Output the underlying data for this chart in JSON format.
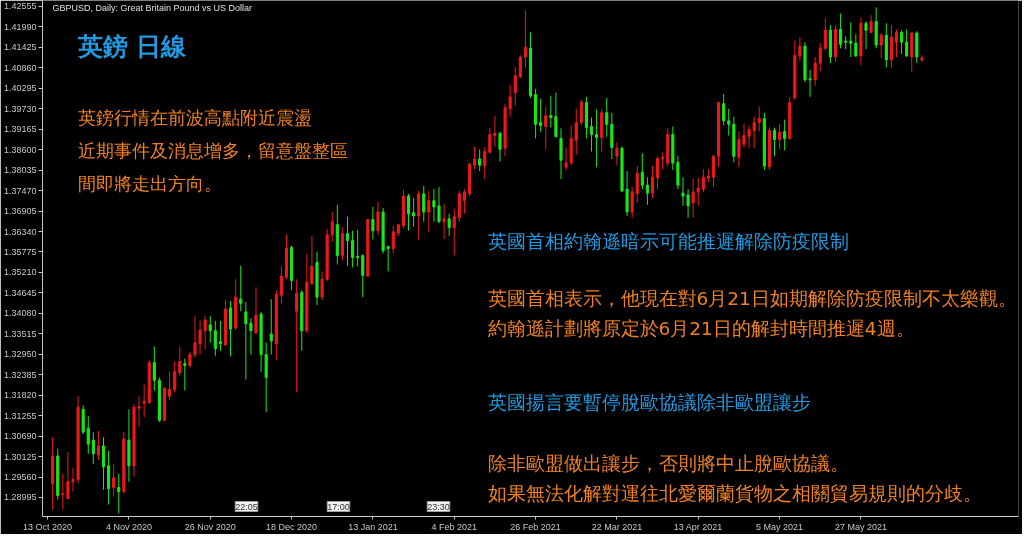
{
  "chart_data": {
    "type": "candlestick",
    "title": "英鎊 日線",
    "subtitle": "GBPUSD, Daily: Great Britain Pound vs US Dollar",
    "annotations": [
      "英鎊行情在前波高點附近震盪",
      "近期事件及消息增多，留意盤整區",
      "間即將走出方向。",
      "英國首相約翰遜暗示可能推遲解除防疫限制",
      "英國首相表示，他現在對6月21日如期解除防疫限制不太樂觀。",
      "約翰遜計劃將原定於6月21日的解封時間推遲4週。",
      "英國揚言要暫停脫歐協議除非歐盟讓步",
      "除非歐盟做出讓步，否則將中止脫歐協議。",
      "如果無法化解對運往北愛爾蘭貨物之相關貿易規則的分歧。",
      "22:05",
      "17:00",
      "23:30"
    ],
    "categories": [
      "13 Oct 2020",
      null,
      null,
      null,
      null,
      null,
      null,
      null,
      null,
      null,
      null,
      null,
      null,
      null,
      null,
      null,
      "4 Nov 2020",
      null,
      null,
      null,
      null,
      null,
      null,
      null,
      null,
      null,
      null,
      null,
      null,
      null,
      null,
      null,
      "26 Nov 2020",
      null,
      null,
      null,
      null,
      null,
      null,
      null,
      null,
      null,
      null,
      null,
      null,
      null,
      null,
      null,
      "18 Dec 2020",
      null,
      null,
      null,
      null,
      null,
      null,
      null,
      null,
      null,
      null,
      null,
      null,
      null,
      null,
      null,
      "13 Jan 2021",
      null,
      null,
      null,
      null,
      null,
      null,
      null,
      null,
      null,
      null,
      null,
      null,
      null,
      null,
      null,
      "4 Feb 2021",
      null,
      null,
      null,
      null,
      null,
      null,
      null,
      null,
      null,
      null,
      null,
      null,
      null,
      null,
      null,
      "26 Feb 2021",
      null,
      null,
      null,
      null,
      null,
      null,
      null,
      null,
      null,
      null,
      null,
      null,
      null,
      null,
      null,
      "22 Mar 2021",
      null,
      null,
      null,
      null,
      null,
      null,
      null,
      null,
      null,
      null,
      null,
      null,
      null,
      null,
      null,
      "13 Apr 2021",
      null,
      null,
      null,
      null,
      null,
      null,
      null,
      null,
      null,
      null,
      null,
      null,
      null,
      null,
      null,
      "5 May 2021",
      null,
      null,
      null,
      null,
      null,
      null,
      null,
      null,
      null,
      null,
      null,
      null,
      null,
      null,
      null,
      "27 May 2021",
      null,
      null,
      null,
      null,
      null,
      null,
      null,
      null,
      null,
      null,
      null,
      null
    ],
    "ohlc": [
      null,
      [
        1.2938,
        1.3066,
        1.2866,
        1.3014
      ],
      [
        1.3014,
        1.3034,
        1.2894,
        1.2905
      ],
      [
        1.2907,
        1.2965,
        1.2866,
        1.291
      ],
      [
        1.2897,
        1.3025,
        1.2894,
        1.2943
      ],
      [
        1.2943,
        1.2982,
        1.2916,
        1.2949
      ],
      [
        1.2949,
        1.3179,
        1.2938,
        1.3149
      ],
      [
        1.3143,
        1.3154,
        1.3075,
        1.308
      ],
      [
        1.3091,
        1.3124,
        1.302,
        1.3047
      ],
      [
        1.3058,
        1.308,
        1.2992,
        1.302
      ],
      [
        1.3017,
        1.3083,
        1.3003,
        1.3042
      ],
      [
        1.3042,
        1.3066,
        1.2921,
        1.2984
      ],
      [
        1.2987,
        1.3028,
        1.288,
        1.2924
      ],
      [
        1.2927,
        1.2992,
        1.2902,
        1.2954
      ],
      [
        1.2927,
        1.2965,
        1.2855,
        1.2916
      ],
      [
        1.2916,
        1.308,
        1.291,
        1.3061
      ],
      [
        1.3058,
        1.3143,
        1.2943,
        1.2987
      ],
      [
        1.2987,
        1.3157,
        1.2957,
        1.3149
      ],
      [
        1.3146,
        1.3179,
        1.3094,
        1.3151
      ],
      [
        1.316,
        1.3212,
        1.3121,
        1.3165
      ],
      [
        1.3162,
        1.328,
        1.3157,
        1.3272
      ],
      [
        1.3272,
        1.3316,
        1.3195,
        1.3223
      ],
      [
        1.3223,
        1.3231,
        1.3108,
        1.3113
      ],
      [
        1.3113,
        1.3204,
        1.311,
        1.3201
      ],
      [
        1.3179,
        1.3247,
        1.3168,
        1.3198
      ],
      [
        1.3198,
        1.3275,
        1.319,
        1.3247
      ],
      [
        1.3245,
        1.3316,
        1.3236,
        1.3275
      ],
      [
        1.3269,
        1.3283,
        1.3195,
        1.3264
      ],
      [
        1.3264,
        1.3302,
        1.3258,
        1.3294
      ],
      [
        1.3294,
        1.3401,
        1.3286,
        1.3327
      ],
      [
        1.3324,
        1.3387,
        1.3294,
        1.3362
      ],
      [
        1.336,
        1.3401,
        1.3308,
        1.339
      ],
      [
        1.3376,
        1.3401,
        1.3327,
        1.336
      ],
      [
        1.336,
        1.3387,
        1.3291,
        1.331
      ],
      [
        1.333,
        1.3387,
        1.3305,
        1.3324
      ],
      [
        1.3321,
        1.3445,
        1.3319,
        1.342
      ],
      [
        1.3423,
        1.3442,
        1.3289,
        1.3365
      ],
      [
        1.3368,
        1.3502,
        1.3362,
        1.3453
      ],
      [
        1.3447,
        1.354,
        1.3414,
        1.3436
      ],
      [
        1.3412,
        1.3439,
        1.3225,
        1.3379
      ],
      [
        1.3381,
        1.3395,
        1.3294,
        1.336
      ],
      [
        1.3354,
        1.348,
        1.3351,
        1.3403
      ],
      [
        1.3406,
        1.3412,
        1.3247,
        1.3294
      ],
      [
        1.3294,
        1.3327,
        1.3135,
        1.3231
      ],
      [
        1.3351,
        1.3447,
        1.3294,
        1.3332
      ],
      [
        1.3324,
        1.3472,
        1.328,
        1.3461
      ],
      [
        1.3458,
        1.3538,
        1.3436,
        1.3511
      ],
      [
        1.3508,
        1.3625,
        1.3502,
        1.3587
      ],
      [
        1.359,
        1.3595,
        1.3472,
        1.3499
      ],
      [
        1.3414,
        1.3502,
        1.319,
        1.3464
      ],
      [
        1.3466,
        1.3472,
        1.3305,
        1.336
      ],
      [
        1.336,
        1.3573,
        1.3354,
        1.3494
      ],
      [
        1.3491,
        1.3622,
        1.3486,
        1.3538
      ],
      [
        1.3549,
        1.3579,
        1.3431,
        1.3453
      ],
      [
        1.3453,
        1.3524,
        1.3445,
        1.3502
      ],
      [
        1.3502,
        1.3642,
        1.3497,
        1.3625
      ],
      [
        1.3625,
        1.3688,
        1.3606,
        1.3661
      ],
      [
        1.3653,
        1.3708,
        1.3543,
        1.3568
      ],
      [
        1.3568,
        1.3645,
        1.3554,
        1.3628
      ],
      [
        1.3628,
        1.3675,
        1.354,
        1.3609
      ],
      [
        1.3609,
        1.3636,
        1.3535,
        1.3562
      ],
      [
        1.3565,
        1.3639,
        1.3538,
        1.3562
      ],
      [
        1.3568,
        1.3571,
        1.3453,
        1.3513
      ],
      [
        1.3511,
        1.3669,
        1.3508,
        1.3667
      ],
      [
        1.3667,
        1.3702,
        1.3612,
        1.3636
      ],
      [
        1.3636,
        1.3716,
        1.3625,
        1.3688
      ],
      [
        1.3688,
        1.3699,
        1.3573,
        1.3581
      ],
      [
        1.3592,
        1.3595,
        1.3524,
        1.3587
      ],
      [
        1.3587,
        1.365,
        1.3573,
        1.3633
      ],
      [
        1.363,
        1.3655,
        1.3622,
        1.3653
      ],
      [
        1.365,
        1.3749,
        1.3642,
        1.3732
      ],
      [
        1.3732,
        1.3738,
        1.3636,
        1.3683
      ],
      [
        1.3686,
        1.3727,
        1.3647,
        1.3677
      ],
      [
        1.3677,
        1.3746,
        1.3612,
        1.3738
      ],
      [
        1.3738,
        1.376,
        1.3661,
        1.3688
      ],
      [
        1.3688,
        1.3746,
        1.3633,
        1.3719
      ],
      [
        1.3719,
        1.3751,
        1.3661,
        1.3702
      ],
      [
        1.3705,
        1.3757,
        1.3658,
        1.3661
      ],
      [
        1.3661,
        1.371,
        1.3614,
        1.3669
      ],
      [
        1.3669,
        1.3683,
        1.3622,
        1.3645
      ],
      [
        1.3645,
        1.3697,
        1.3568,
        1.3675
      ],
      [
        1.3672,
        1.3746,
        1.3661,
        1.3738
      ],
      [
        1.3719,
        1.3751,
        1.3683,
        1.3743
      ],
      [
        1.3738,
        1.3823,
        1.3732,
        1.382
      ],
      [
        1.3817,
        1.3869,
        1.3806,
        1.3834
      ],
      [
        1.3834,
        1.3861,
        1.3801,
        1.3817
      ],
      [
        1.3815,
        1.3866,
        1.3779,
        1.3855
      ],
      [
        1.3853,
        1.3921,
        1.385,
        1.3902
      ],
      [
        1.3899,
        1.3954,
        1.3869,
        1.3905
      ],
      [
        1.3905,
        1.391,
        1.3828,
        1.3861
      ],
      [
        1.3864,
        1.3987,
        1.3842,
        1.3976
      ],
      [
        1.3973,
        1.4039,
        1.3951,
        1.4006
      ],
      [
        1.4017,
        1.4088,
        1.3982,
        1.4064
      ],
      [
        1.4061,
        1.4121,
        1.4058,
        1.4116
      ],
      [
        1.4116,
        1.4245,
        1.4086,
        1.4143
      ],
      [
        1.414,
        1.4184,
        1.4003,
        1.4009
      ],
      [
        1.4012,
        1.4028,
        1.3891,
        1.393
      ],
      [
        1.3935,
        1.4001,
        1.391,
        1.3927
      ],
      [
        1.3924,
        1.3979,
        1.3861,
        1.3954
      ],
      [
        1.3954,
        1.4009,
        1.3921,
        1.3949
      ],
      [
        1.3951,
        1.4017,
        1.3894,
        1.3896
      ],
      [
        1.3891,
        1.3919,
        1.3779,
        1.3831
      ],
      [
        1.3812,
        1.3866,
        1.3804,
        1.3823
      ],
      [
        1.3823,
        1.3927,
        1.3817,
        1.3891
      ],
      [
        1.3886,
        1.3973,
        1.3847,
        1.3935
      ],
      [
        1.3935,
        1.3998,
        1.3927,
        1.3992
      ],
      [
        1.399,
        1.4006,
        1.3891,
        1.3921
      ],
      [
        1.3924,
        1.3949,
        1.3855,
        1.3902
      ],
      [
        1.3902,
        1.3971,
        1.3812,
        1.3894
      ],
      [
        1.3894,
        1.3973,
        1.3853,
        1.3962
      ],
      [
        1.3962,
        1.4003,
        1.3896,
        1.393
      ],
      [
        1.393,
        1.3962,
        1.3834,
        1.3866
      ],
      [
        1.3842,
        1.388,
        1.3817,
        1.3864
      ],
      [
        1.3864,
        1.3869,
        1.3743,
        1.3746
      ],
      [
        1.3751,
        1.3801,
        1.3677,
        1.3688
      ],
      [
        1.3688,
        1.3757,
        1.3672,
        1.3743
      ],
      [
        1.3738,
        1.3815,
        1.3713,
        1.3795
      ],
      [
        1.3798,
        1.385,
        1.3751,
        1.3762
      ],
      [
        1.3762,
        1.3784,
        1.3708,
        1.374
      ],
      [
        1.374,
        1.3815,
        1.3727,
        1.3784
      ],
      [
        1.3782,
        1.3842,
        1.3751,
        1.3836
      ],
      [
        1.3834,
        1.3853,
        1.3806,
        1.3839
      ],
      [
        1.3823,
        1.3919,
        1.3815,
        1.3902
      ],
      [
        1.3902,
        1.3924,
        1.3804,
        1.3823
      ],
      [
        1.3825,
        1.3842,
        1.3751,
        1.3762
      ],
      [
        1.374,
        1.3784,
        1.3705,
        1.3732
      ],
      [
        1.3735,
        1.3751,
        1.3672,
        1.3705
      ],
      [
        1.3713,
        1.3779,
        1.3672,
        1.3743
      ],
      [
        1.3743,
        1.3782,
        1.3705,
        1.3754
      ],
      [
        1.3751,
        1.3806,
        1.3743,
        1.3784
      ],
      [
        1.3782,
        1.3806,
        1.3771,
        1.3787
      ],
      [
        1.3784,
        1.3845,
        1.3757,
        1.3842
      ],
      [
        1.3842,
        1.3992,
        1.3812,
        1.399
      ],
      [
        1.3987,
        1.4014,
        1.3927,
        1.394
      ],
      [
        1.394,
        1.3973,
        1.3899,
        1.393
      ],
      [
        1.393,
        1.3951,
        1.3825,
        1.3842
      ],
      [
        1.3839,
        1.391,
        1.3812,
        1.3888
      ],
      [
        1.3875,
        1.3932,
        1.3866,
        1.3899
      ],
      [
        1.3897,
        1.3927,
        1.3864,
        1.3916
      ],
      [
        1.3913,
        1.3951,
        1.3864,
        1.3935
      ],
      [
        1.3935,
        1.3979,
        1.391,
        1.3946
      ],
      [
        1.3946,
        1.3962,
        1.3804,
        1.3815
      ],
      [
        1.3812,
        1.3921,
        1.3804,
        1.3913
      ],
      [
        1.3913,
        1.3921,
        1.3842,
        1.3888
      ],
      [
        1.3888,
        1.3932,
        1.3861,
        1.3908
      ],
      [
        1.391,
        1.3943,
        1.3858,
        1.3891
      ],
      [
        1.3891,
        1.4006,
        1.3888,
        1.399
      ],
      [
        1.4003,
        1.4162,
        1.3998,
        1.4121
      ],
      [
        1.4119,
        1.4171,
        1.4105,
        1.4146
      ],
      [
        1.4146,
        1.4157,
        1.4047,
        1.4053
      ],
      [
        1.4056,
        1.408,
        1.4006,
        1.4053
      ],
      [
        1.4053,
        1.4116,
        1.4036,
        1.4099
      ],
      [
        1.4099,
        1.4154,
        1.4077,
        1.414
      ],
      [
        1.414,
        1.4223,
        1.4135,
        1.419
      ],
      [
        1.419,
        1.4204,
        1.4099,
        1.4116
      ],
      [
        1.4116,
        1.4204,
        1.4102,
        1.4192
      ],
      [
        1.4192,
        1.4236,
        1.414,
        1.4151
      ],
      [
        1.416,
        1.4173,
        1.4138,
        1.4157
      ],
      [
        1.416,
        1.4212,
        1.4116,
        1.4154
      ],
      [
        1.4154,
        1.4179,
        1.4116,
        1.4119
      ],
      [
        1.4119,
        1.4225,
        1.4094,
        1.4209
      ],
      [
        1.4209,
        1.4214,
        1.4138,
        1.419
      ],
      [
        1.4184,
        1.4231,
        1.4182,
        1.4214
      ],
      [
        1.4214,
        1.4253,
        1.414,
        1.4149
      ],
      [
        1.4149,
        1.4182,
        1.4113,
        1.4176
      ],
      [
        1.4176,
        1.4209,
        1.4088,
        1.4108
      ],
      [
        1.4108,
        1.4204,
        1.4086,
        1.4171
      ],
      [
        1.4157,
        1.4192,
        1.4116,
        1.4184
      ],
      [
        1.4184,
        1.419,
        1.4124,
        1.4157
      ],
      [
        1.4157,
        1.4192,
        1.4116,
        1.4119
      ],
      [
        1.4116,
        1.4184,
        1.4075,
        1.4182
      ],
      [
        1.4182,
        1.4187,
        1.4099,
        1.4116
      ],
      [
        1.4108,
        1.4121,
        1.4102,
        1.4113
      ]
    ],
    "colors": [
      null,
      "#f01818",
      "#18e818",
      "#f01818",
      "#f01818",
      "#f01818",
      "#f01818",
      "#18e818",
      "#18e818",
      "#18e818",
      "#f01818",
      "#18e818",
      "#18e818",
      "#f01818",
      "#18e818",
      "#f01818",
      "#18e818",
      "#f01818",
      "#f01818",
      "#f01818",
      "#f01818",
      "#18e818",
      "#18e818",
      "#f01818",
      "#f01818",
      "#f01818",
      "#f01818",
      "#18e818",
      "#f01818",
      "#f01818",
      "#f01818",
      "#f01818",
      "#18e818",
      "#18e818",
      "#18e818",
      "#f01818",
      "#18e818",
      "#f01818",
      "#18e818",
      "#18e818",
      "#18e818",
      "#f01818",
      "#18e818",
      "#18e818",
      "#18e818",
      "#f01818",
      "#f01818",
      "#f01818",
      "#18e818",
      "#f01818",
      "#18e818",
      "#f01818",
      "#f01818",
      "#18e818",
      "#f01818",
      "#f01818",
      "#f01818",
      "#18e818",
      "#f01818",
      "#18e818",
      "#18e818",
      "#18e818",
      "#18e818",
      "#f01818",
      "#18e818",
      "#f01818",
      "#18e818",
      "#18e818",
      "#f01818",
      "#f01818",
      "#f01818",
      "#18e818",
      "#18e818",
      "#f01818",
      "#18e818",
      "#f01818",
      "#18e818",
      "#18e818",
      "#f01818",
      "#18e818",
      "#f01818",
      "#f01818",
      "#f01818",
      "#f01818",
      "#f01818",
      "#18e818",
      "#f01818",
      "#f01818",
      "#f01818",
      "#18e818",
      "#f01818",
      "#f01818",
      "#f01818",
      "#f01818",
      "#f01818",
      "#18e818",
      "#18e818",
      "#18e818",
      "#f01818",
      "#18e818",
      "#18e818",
      "#18e818",
      "#f01818",
      "#f01818",
      "#f01818",
      "#f01818",
      "#18e818",
      "#18e818",
      "#18e818",
      "#f01818",
      "#18e818",
      "#18e818",
      "#f01818",
      "#18e818",
      "#18e818",
      "#f01818",
      "#f01818",
      "#18e818",
      "#18e818",
      "#f01818",
      "#f01818",
      "#f01818",
      "#f01818",
      "#18e818",
      "#18e818",
      "#18e818",
      "#18e818",
      "#f01818",
      "#f01818",
      "#f01818",
      "#f01818",
      "#f01818",
      "#f01818",
      "#18e818",
      "#18e818",
      "#18e818",
      "#f01818",
      "#f01818",
      "#f01818",
      "#f01818",
      "#f01818",
      "#18e818",
      "#f01818",
      "#18e818",
      "#f01818",
      "#18e818",
      "#f01818",
      "#f01818",
      "#f01818",
      "#18e818",
      "#18e818",
      "#f01818",
      "#f01818",
      "#f01818",
      "#18e818",
      "#f01818",
      "#18e818",
      "#18e818",
      "#18e818",
      "#18e818",
      "#f01818",
      "#18e818",
      "#f01818",
      "#18e818",
      "#f01818",
      "#18e818",
      "#f01818",
      "#f01818",
      "#18e818",
      "#18e818",
      "#f01818",
      "#18e818",
      "#f01818"
    ],
    "ylim": [
      1.2847,
      1.4272
    ],
    "yticks": [
      {
        "value": 1.42555,
        "label": "1.42555"
      },
      {
        "value": 1.4199,
        "label": "1.41990"
      },
      {
        "value": 1.41425,
        "label": "1.41425"
      },
      {
        "value": 1.4086,
        "label": "1.40860"
      },
      {
        "value": 1.40295,
        "label": "1.40295"
      },
      {
        "value": 1.3973,
        "label": "1.39730"
      },
      {
        "value": 1.39165,
        "label": "1.39165"
      },
      {
        "value": 1.386,
        "label": "1.38600"
      },
      {
        "value": 1.38035,
        "label": "1.38035"
      },
      {
        "value": 1.3747,
        "label": "1.37470"
      },
      {
        "value": 1.36905,
        "label": "1.36905"
      },
      {
        "value": 1.3634,
        "label": "1.36340"
      },
      {
        "value": 1.35775,
        "label": "1.35775"
      },
      {
        "value": 1.3521,
        "label": "1.35210"
      },
      {
        "value": 1.34645,
        "label": "1.34645"
      },
      {
        "value": 1.3408,
        "label": "1.34080"
      },
      {
        "value": 1.33515,
        "label": "1.33515"
      },
      {
        "value": 1.3295,
        "label": "1.32950"
      },
      {
        "value": 1.32385,
        "label": "1.32385"
      },
      {
        "value": 1.3182,
        "label": "1.31820"
      },
      {
        "value": 1.31255,
        "label": "1.31255"
      },
      {
        "value": 1.3069,
        "label": "1.30690"
      },
      {
        "value": 1.30125,
        "label": "1.30125"
      },
      {
        "value": 1.2956,
        "label": "1.29560"
      },
      {
        "value": 1.28995,
        "label": "1.28995"
      }
    ]
  }
}
